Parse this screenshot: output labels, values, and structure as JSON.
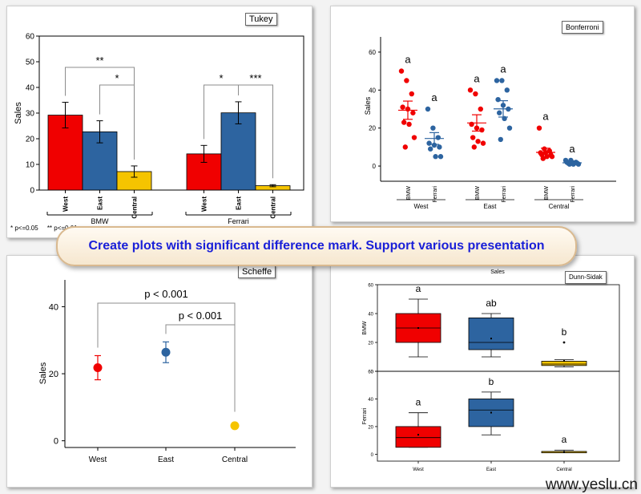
{
  "banner": {
    "text": "Create plots with significant difference mark. Support various presentation"
  },
  "watermark": "www.yeslu.cn",
  "colors": {
    "red": "#f00000",
    "blue": "#2d64a0",
    "yellow": "#f5c400",
    "axis": "#000000",
    "bracket": "#8c8c8c"
  },
  "panels": {
    "tukey": {
      "tag": "Tukey",
      "ylabel": "Sales",
      "yticks": [
        "0",
        "10",
        "20",
        "30",
        "40",
        "50",
        "60"
      ],
      "footnote": "* p<=0.05     ** p<=0.01",
      "groups": [
        "BMW",
        "Ferrari"
      ],
      "sig": [
        "**",
        "*",
        "*",
        "***"
      ]
    },
    "bonferroni": {
      "tag": "Bonferroni",
      "ylabel": "Sales",
      "yticks": [
        "0",
        "20",
        "40",
        "60"
      ],
      "letters": [
        "a",
        "a",
        "a",
        "a",
        "a",
        "a"
      ]
    },
    "scheffe": {
      "tag": "Scheffe",
      "ylabel": "Sales",
      "yticks": [
        "0",
        "20",
        "40"
      ],
      "sig": [
        "p < 0.001",
        "p < 0.001"
      ]
    },
    "dunn": {
      "tag": "Dunn-Sidak",
      "title": "Sales",
      "top_ylabel": "BMW",
      "bottom_ylabel": "Ferrari",
      "top_yticks": [
        "0",
        "20",
        "40",
        "60"
      ],
      "bottom_yticks": [
        "0",
        "20",
        "40",
        "60"
      ],
      "top_letters": [
        "a",
        "ab",
        "b"
      ],
      "bottom_letters": [
        "a",
        "b",
        "a"
      ]
    }
  },
  "chart_data": [
    {
      "id": "tukey",
      "type": "bar",
      "categories": [
        "West",
        "East",
        "Central"
      ],
      "groups": [
        "BMW",
        "Ferrari"
      ],
      "ylabel": "Sales",
      "ylim": [
        0,
        60
      ],
      "series": [
        {
          "name": "BMW",
          "values": [
            29.2,
            22.7,
            7.2
          ],
          "errors": [
            5.0,
            4.3,
            2.2
          ],
          "colors": [
            "#f00000",
            "#2d64a0",
            "#f5c400"
          ]
        },
        {
          "name": "Ferrari",
          "values": [
            14.1,
            30.1,
            1.7
          ],
          "errors": [
            3.3,
            4.3,
            0.4
          ],
          "colors": [
            "#f00000",
            "#2d64a0",
            "#f5c400"
          ]
        }
      ],
      "annotations": [
        {
          "group": "BMW",
          "from": "West",
          "to": "Central",
          "label": "**"
        },
        {
          "group": "BMW",
          "from": "East",
          "to": "Central",
          "label": "*"
        },
        {
          "group": "Ferrari",
          "from": "West",
          "to": "East",
          "label": "*"
        },
        {
          "group": "Ferrari",
          "from": "East",
          "to": "Central",
          "label": "***"
        }
      ]
    },
    {
      "id": "bonferroni",
      "type": "scatter",
      "regions": [
        "West",
        "East",
        "Central"
      ],
      "brands": [
        "BMW",
        "Ferrari"
      ],
      "ylabel": "Sales",
      "ylim": [
        -8,
        68
      ],
      "series": [
        {
          "region": "West",
          "brand": "BMW",
          "mean": 29.4,
          "sem": 4.8,
          "points": [
            50,
            45,
            38,
            31,
            30,
            28,
            23,
            22,
            15,
            10
          ]
        },
        {
          "region": "West",
          "brand": "Ferrari",
          "mean": 14.5,
          "sem": 3.1,
          "points": [
            30,
            20,
            15,
            12,
            11,
            10,
            9,
            5,
            5
          ]
        },
        {
          "region": "East",
          "brand": "BMW",
          "mean": 22.7,
          "sem": 4.3,
          "points": [
            40,
            38,
            30,
            22,
            20,
            19,
            15,
            13,
            12,
            10
          ]
        },
        {
          "region": "East",
          "brand": "Ferrari",
          "mean": 30.1,
          "sem": 4.3,
          "points": [
            45,
            45,
            40,
            35,
            32,
            30,
            28,
            25,
            20,
            14
          ]
        },
        {
          "region": "Central",
          "brand": "BMW",
          "mean": 7.2,
          "sem": 2.2,
          "points": [
            20,
            9,
            8,
            7,
            7,
            6,
            6,
            5,
            5,
            4
          ]
        },
        {
          "region": "Central",
          "brand": "Ferrari",
          "mean": 1.7,
          "sem": 0.4,
          "points": [
            3,
            3,
            2,
            2,
            2,
            1.5,
            1.5,
            1,
            1,
            1
          ]
        }
      ]
    },
    {
      "id": "scheffe",
      "type": "scatter",
      "categories": [
        "West",
        "East",
        "Central"
      ],
      "ylabel": "Sales",
      "ylim": [
        -2,
        48
      ],
      "values": [
        21.8,
        26.4,
        4.5
      ],
      "errors": [
        3.6,
        3.1,
        0.8
      ],
      "annotations": [
        {
          "from": "West",
          "to": "Central",
          "label": "p < 0.001"
        },
        {
          "from": "East",
          "to": "Central",
          "label": "p < 0.001"
        }
      ]
    },
    {
      "id": "dunn-sidak",
      "type": "box",
      "title": "Sales",
      "categories": [
        "West",
        "East",
        "Central"
      ],
      "series": [
        {
          "name": "BMW",
          "ylim": [
            0,
            60
          ],
          "boxes": [
            {
              "min": 10,
              "q1": 20,
              "median": 30,
              "q3": 40,
              "max": 50,
              "mean": 30
            },
            {
              "min": 10,
              "q1": 15,
              "median": 20,
              "q3": 37,
              "max": 40,
              "mean": 22.7
            },
            {
              "min": 3,
              "q1": 4,
              "median": 5,
              "q3": 7,
              "max": 8,
              "mean": 7.2,
              "outliers": [
                20
              ]
            }
          ],
          "letters": [
            "a",
            "ab",
            "b"
          ]
        },
        {
          "name": "Ferrari",
          "ylim": [
            -5,
            60
          ],
          "boxes": [
            {
              "min": 5,
              "q1": 5,
              "median": 12,
              "q3": 20,
              "max": 30,
              "mean": 14.1
            },
            {
              "min": 14,
              "q1": 20,
              "median": 32,
              "q3": 40,
              "max": 45,
              "mean": 30.1
            },
            {
              "min": 1,
              "q1": 1,
              "median": 2,
              "q3": 2,
              "max": 3,
              "mean": 1.7
            }
          ],
          "letters": [
            "a",
            "b",
            "a"
          ]
        }
      ]
    }
  ]
}
